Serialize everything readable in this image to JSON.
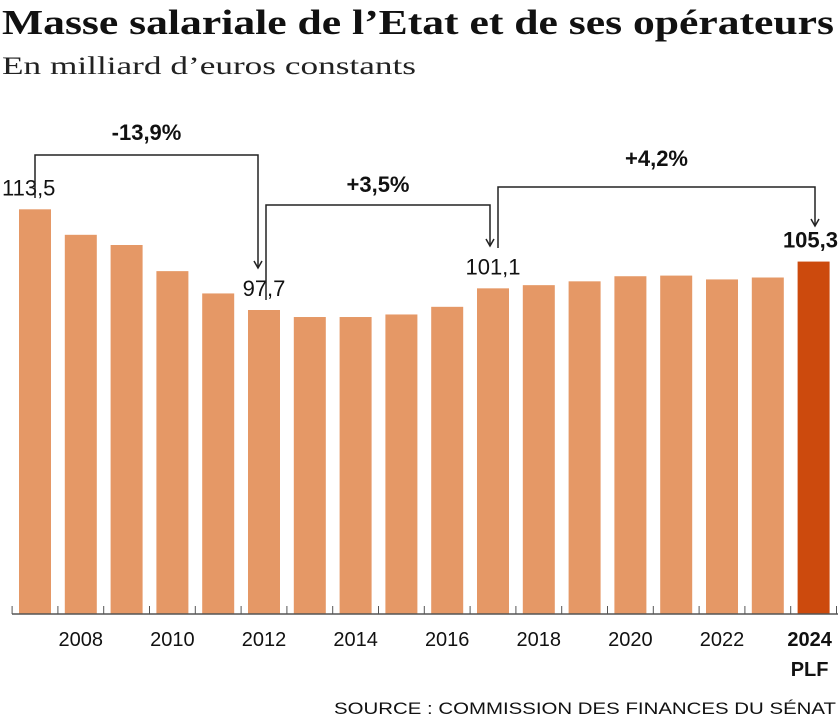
{
  "chart_data": {
    "type": "bar",
    "title": "Masse salariale de l’Etat et de ses opérateurs",
    "subtitle": "En milliard d’euros constants",
    "categories": [
      "2007",
      "2008",
      "2009",
      "2010",
      "2011",
      "2012",
      "2013",
      "2014",
      "2015",
      "2016",
      "2017",
      "2018",
      "2019",
      "2020",
      "2021",
      "2022",
      "2023",
      "2024"
    ],
    "values": [
      113.5,
      109.5,
      107.9,
      103.8,
      100.3,
      97.7,
      96.6,
      96.6,
      97.0,
      98.2,
      101.1,
      101.6,
      102.2,
      103.0,
      103.1,
      102.5,
      102.8,
      105.3
    ],
    "tick_labels": [
      "2008",
      "2010",
      "2012",
      "2014",
      "2016",
      "2018",
      "2020",
      "2022",
      "2024"
    ],
    "last_tick_sublabel": "PLF",
    "data_labels": [
      {
        "category": "2007",
        "text": "113,5"
      },
      {
        "category": "2012",
        "text": "97,7"
      },
      {
        "category": "2017",
        "text": "101,1"
      },
      {
        "category": "2024",
        "text": "105,3"
      }
    ],
    "annotations": [
      {
        "from": "2007",
        "to": "2012",
        "text": "-13,9%"
      },
      {
        "from": "2012",
        "to": "2017",
        "text": "+3,5%"
      },
      {
        "from": "2017",
        "to": "2024",
        "text": "+4,2%"
      }
    ],
    "ylim": [
      50,
      115
    ],
    "grid": false,
    "colors": {
      "bar": "#e59866",
      "highlight": "#cc4a0d"
    },
    "source": "SOURCE : COMMISSION DES FINANCES DU SÉNAT"
  }
}
